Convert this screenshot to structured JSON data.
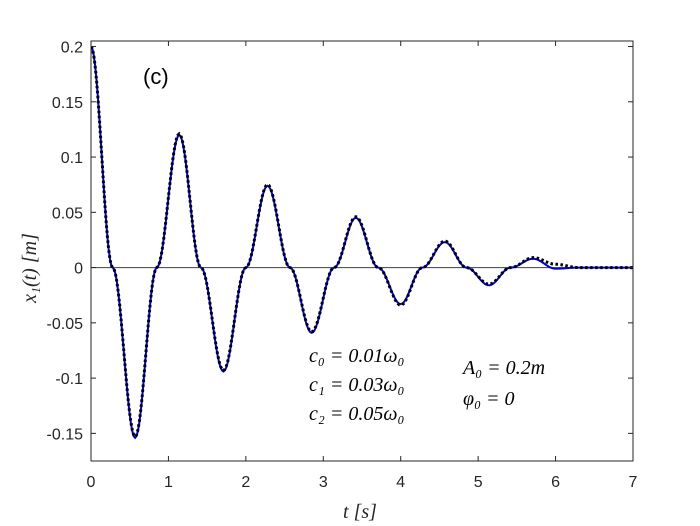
{
  "chart_data": {
    "type": "line",
    "panel_label": "(c)",
    "xlabel": "t [s]",
    "ylabel": "x₁(t) [m]",
    "xlim": [
      0,
      7
    ],
    "ylim": [
      -0.175,
      0.205
    ],
    "xticks": [
      0,
      1,
      2,
      3,
      4,
      5,
      6,
      7
    ],
    "xtick_labels": [
      "0",
      "1",
      "2",
      "3",
      "4",
      "5",
      "6",
      "7"
    ],
    "yticks": [
      0.2,
      0.15,
      0.1,
      0.05,
      0,
      -0.05,
      -0.1,
      -0.15
    ],
    "ytick_labels": [
      "0.2",
      "0.15",
      "0.1",
      "0.05",
      "0",
      "-0.05",
      "-0.1",
      "-0.15"
    ],
    "grid": false,
    "zero_line": true,
    "annotations_left": [
      "c₀ = 0.01ω₀",
      "c₁ = 0.03ω₀",
      "c₂ = 0.05ω₀"
    ],
    "annotations_right": [
      "A₀ = 0.2m",
      "φ₀ = 0"
    ],
    "colors": {
      "solid": "#0000cc",
      "dotted": "#000000",
      "zero_line": "#404040",
      "axes": "#262626"
    },
    "series": [
      {
        "style": "solid",
        "x": [
          0,
          0.28,
          0.57,
          0.85,
          1.14,
          1.42,
          1.71,
          2.0,
          2.28,
          2.57,
          2.85,
          3.14,
          3.42,
          3.71,
          4.0,
          4.28,
          4.57,
          4.85,
          5.14,
          5.42,
          5.71,
          6.0,
          6.3,
          6.6,
          7.0
        ],
        "y": [
          0.2,
          0.0,
          -0.154,
          0.0,
          0.12,
          0.0,
          -0.094,
          0.0,
          0.074,
          0.0,
          -0.059,
          0.0,
          0.045,
          0.0,
          -0.033,
          0.0,
          0.023,
          0.0,
          -0.016,
          0.0,
          0.008,
          -0.001,
          0.0,
          0.0,
          0.0
        ]
      },
      {
        "style": "dotted",
        "x": [
          0,
          0.28,
          0.57,
          0.85,
          1.14,
          1.42,
          1.71,
          2.0,
          2.28,
          2.57,
          2.85,
          3.14,
          3.42,
          3.71,
          4.0,
          4.28,
          4.57,
          4.85,
          5.14,
          5.42,
          5.71,
          6.0,
          6.3,
          6.6,
          7.0
        ],
        "y": [
          0.2,
          0.0,
          -0.153,
          0.0,
          0.121,
          0.0,
          -0.093,
          0.0,
          0.075,
          0.0,
          -0.058,
          0.0,
          0.046,
          0.0,
          -0.034,
          0.0,
          0.024,
          0.0,
          -0.015,
          0.0,
          0.009,
          0.003,
          0.0,
          0.0,
          0.0
        ]
      }
    ]
  }
}
